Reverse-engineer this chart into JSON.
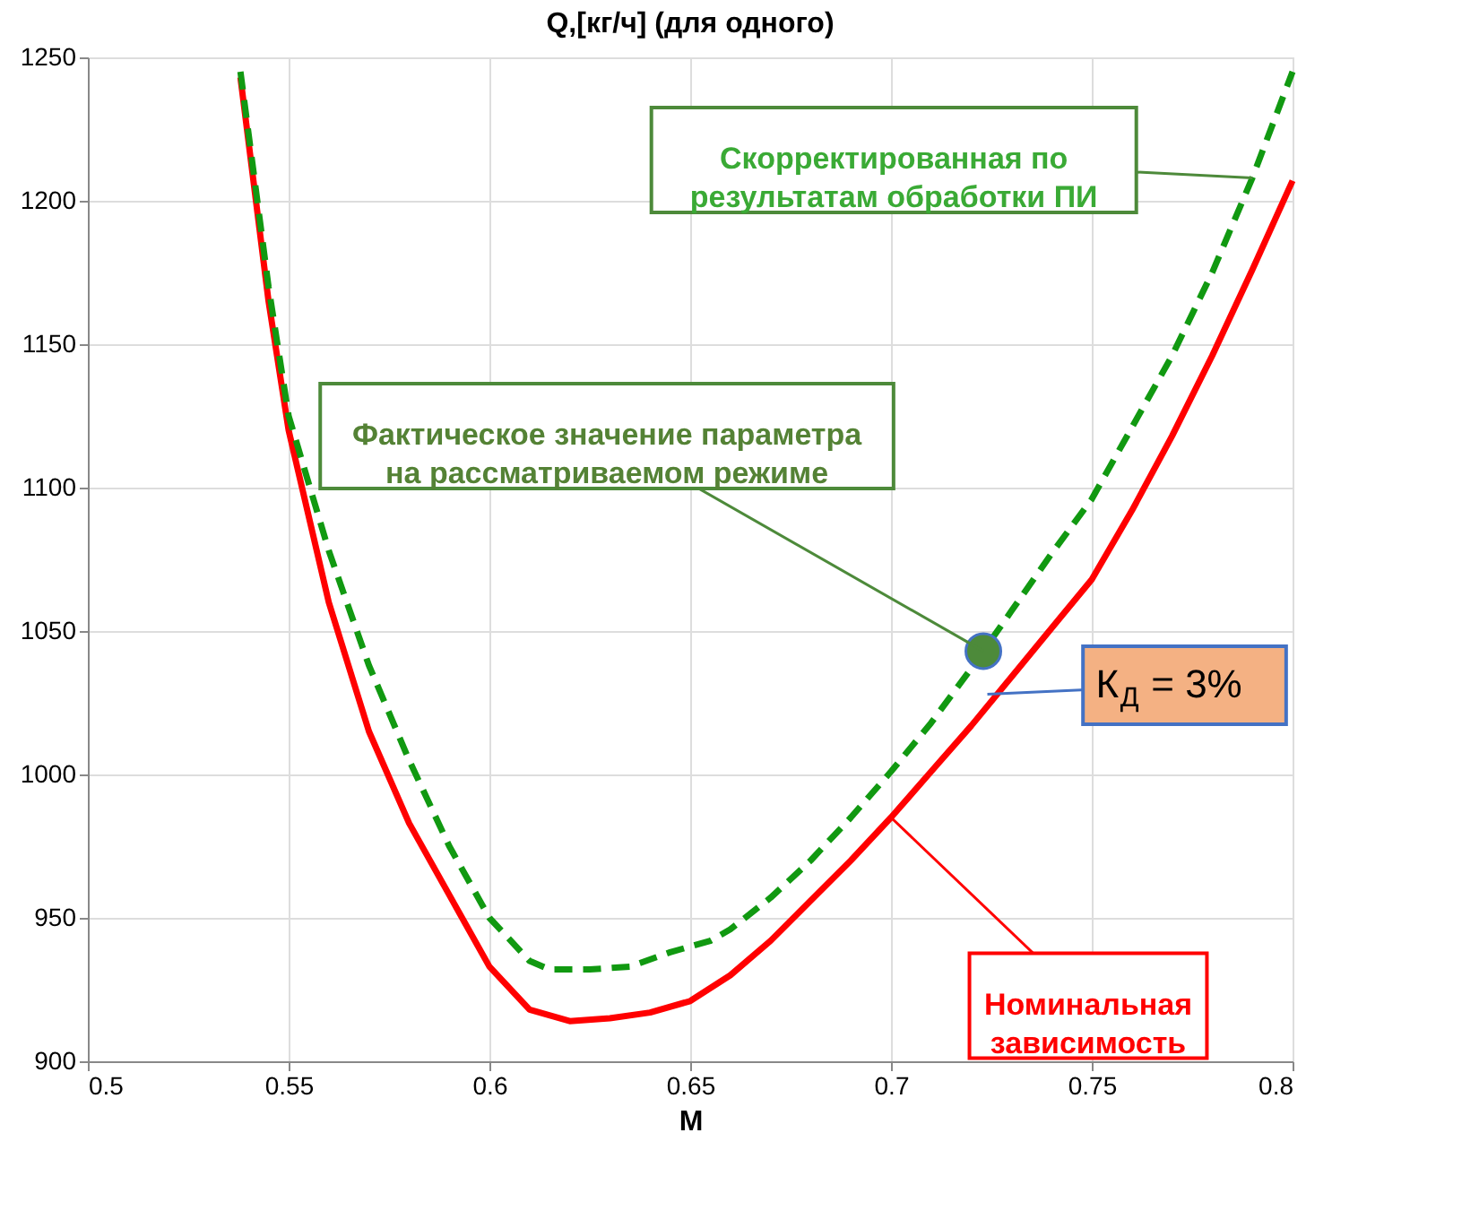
{
  "chart_data": {
    "type": "line",
    "title": "Q,[кг/ч] (для одного)",
    "xlabel": "M",
    "xlim": [
      0.5,
      0.8
    ],
    "xticks": [
      0.5,
      0.55,
      0.6,
      0.65,
      0.7,
      0.75,
      0.8
    ],
    "ylim": [
      900,
      1250
    ],
    "yticks": [
      900,
      950,
      1000,
      1050,
      1100,
      1150,
      1200,
      1250
    ],
    "grid": true,
    "series": [
      {
        "color": "#ff0000",
        "line_style": "solid",
        "x": [
          0.538,
          0.545,
          0.55,
          0.56,
          0.57,
          0.58,
          0.59,
          0.6,
          0.61,
          0.62,
          0.63,
          0.64,
          0.65,
          0.66,
          0.67,
          0.68,
          0.69,
          0.7,
          0.71,
          0.72,
          0.73,
          0.74,
          0.75,
          0.76,
          0.77,
          0.78,
          0.79,
          0.8
        ],
        "values": [
          1243,
          1165,
          1120,
          1060,
          1015,
          983,
          958,
          933,
          918,
          914,
          915,
          917,
          921,
          930,
          942,
          956,
          970,
          985,
          1001,
          1017,
          1034,
          1051,
          1068,
          1092,
          1118,
          1146,
          1176,
          1207
        ]
      },
      {
        "color": "#119911",
        "line_style": "dashed",
        "x": [
          0.538,
          0.545,
          0.55,
          0.56,
          0.57,
          0.58,
          0.59,
          0.6,
          0.61,
          0.615,
          0.625,
          0.635,
          0.645,
          0.655,
          0.66,
          0.67,
          0.68,
          0.69,
          0.7,
          0.71,
          0.72,
          0.73,
          0.74,
          0.75,
          0.76,
          0.77,
          0.78,
          0.79,
          0.8
        ],
        "values": [
          1245,
          1170,
          1125,
          1078,
          1038,
          1005,
          975,
          950,
          935,
          932,
          932,
          933,
          938,
          942,
          946,
          957,
          970,
          985,
          1001,
          1018,
          1037,
          1057,
          1077,
          1096,
          1121,
          1146,
          1175,
          1208,
          1245
        ]
      },
      {
        "type": "scatter",
        "marker": "circle",
        "color": "#4d8a3a",
        "x": [
          0.723
        ],
        "values": [
          1043
        ]
      }
    ],
    "annotations": [
      {
        "text": "Скорректированная по\nрезультатам  обработки ПИ",
        "x": 0.79,
        "y": 1208
      },
      {
        "text": "Фактическое значение параметра\nна рассматриваемом режиме",
        "x": 0.723,
        "y": 1043
      },
      {
        "text": "К$_{Д}$ = 3%",
        "x": 0.724,
        "y": 1028
      },
      {
        "text": "Номинальная\nзависимость",
        "x": 0.7,
        "y": 985
      }
    ]
  }
}
